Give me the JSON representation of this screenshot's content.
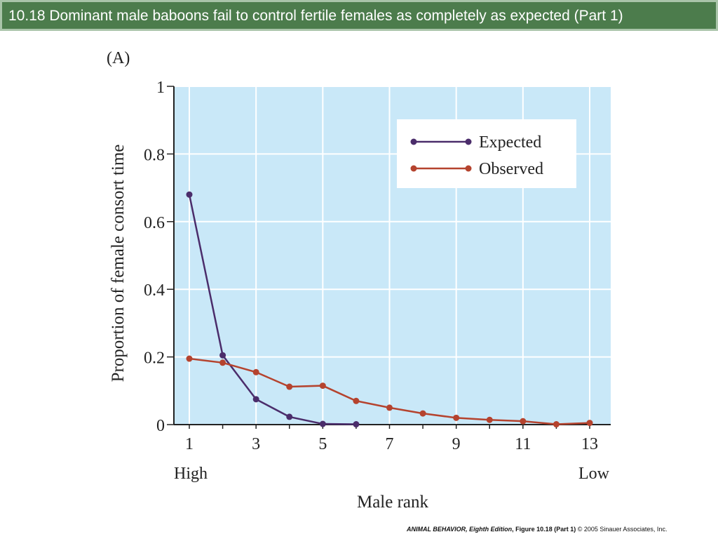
{
  "slide": {
    "title": "10.18  Dominant male baboons fail to control fertile females as completely as expected (Part 1)",
    "title_bar_color": "#4c7c4c"
  },
  "chart_data": {
    "type": "line",
    "panel_label": "(A)",
    "xlabel": "Male rank",
    "ylabel": "Proportion of female consort time",
    "xlim": [
      1,
      13
    ],
    "ylim": [
      0,
      1
    ],
    "x_ticks": [
      1,
      3,
      5,
      7,
      9,
      11,
      13
    ],
    "y_ticks": [
      0,
      0.2,
      0.4,
      0.6,
      0.8,
      1
    ],
    "y_tick_labels": [
      "0",
      "0.2",
      "0.4",
      "0.6",
      "0.8",
      "1"
    ],
    "x_end_labels": {
      "low_rank_number": "High",
      "high_rank_number": "Low"
    },
    "grid": true,
    "legend_position": "top-right",
    "plot_background": "#c9e8f8",
    "series": [
      {
        "name": "Expected",
        "color": "#4b2d6b",
        "x": [
          1,
          2,
          3,
          4,
          5,
          6
        ],
        "y": [
          0.68,
          0.205,
          0.075,
          0.023,
          0.002,
          0.001
        ]
      },
      {
        "name": "Observed",
        "color": "#b5432e",
        "x": [
          1,
          2,
          3,
          4,
          5,
          6,
          7,
          8,
          9,
          10,
          11,
          12,
          13
        ],
        "y": [
          0.195,
          0.183,
          0.155,
          0.112,
          0.115,
          0.07,
          0.05,
          0.033,
          0.02,
          0.014,
          0.01,
          0.001,
          0.005
        ]
      }
    ]
  },
  "caption": {
    "book": "ANIMAL BEHAVIOR, Eighth Edition",
    "figure": ", Figure 10.18 (Part 1)",
    "copyright": "© 2005 Sinauer Associates, Inc."
  }
}
